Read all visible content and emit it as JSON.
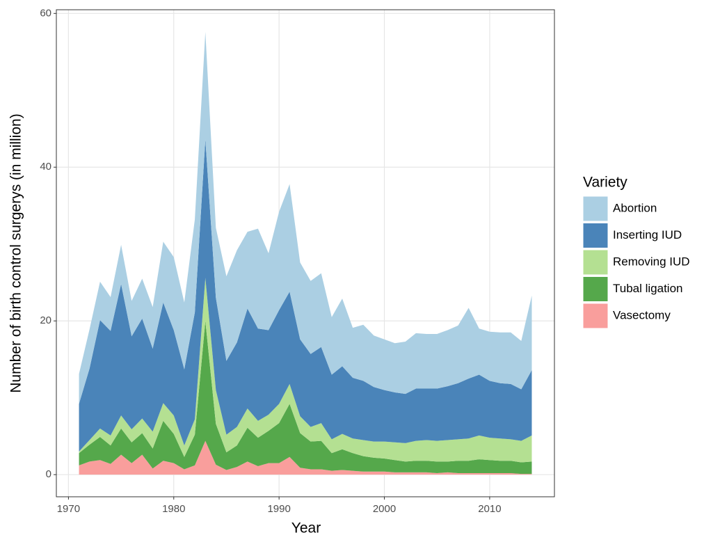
{
  "chart_data": {
    "type": "stacked_area",
    "x_label": "Year",
    "y_label": "Number of birth control surgerys (in million)",
    "legend_title": "Variety",
    "legend_position": "right",
    "grid": true,
    "x": [
      1971,
      1972,
      1973,
      1974,
      1975,
      1976,
      1977,
      1978,
      1979,
      1980,
      1981,
      1982,
      1983,
      1984,
      1985,
      1986,
      1987,
      1988,
      1989,
      1990,
      1991,
      1992,
      1993,
      1994,
      1995,
      1996,
      1997,
      1998,
      1999,
      2000,
      2001,
      2002,
      2003,
      2004,
      2005,
      2006,
      2007,
      2008,
      2009,
      2010,
      2011,
      2012,
      2013,
      2014
    ],
    "xlim": [
      1968.85,
      2016.15
    ],
    "xticks": [
      1970,
      1980,
      1990,
      2000,
      2010
    ],
    "ylim": [
      -2.88,
      60.48
    ],
    "yticks": [
      0,
      20,
      40,
      60
    ],
    "series": [
      {
        "name": "Abortion",
        "color": "#abcfe3",
        "values": [
          3.9,
          5.1,
          5.0,
          4.4,
          5.1,
          4.6,
          5.2,
          5.4,
          7.9,
          9.5,
          8.7,
          12.1,
          14.0,
          9.1,
          11.0,
          12.0,
          10.0,
          13.0,
          10.0,
          12.8,
          14.0,
          10.0,
          9.5,
          9.6,
          7.5,
          8.8,
          6.5,
          7.3,
          6.7,
          6.6,
          6.4,
          6.8,
          7.2,
          7.1,
          7.1,
          7.3,
          7.5,
          9.2,
          6.0,
          6.4,
          6.6,
          6.7,
          6.3,
          9.7
        ]
      },
      {
        "name": "Inserting IUD",
        "color": "#4a84b9",
        "values": [
          6.2,
          9.3,
          14.1,
          13.6,
          17.1,
          12.1,
          13.0,
          10.8,
          13.1,
          11.1,
          9.9,
          13.9,
          18.0,
          12.0,
          9.6,
          11.0,
          13.0,
          12.0,
          11.0,
          12.2,
          12.0,
          10.0,
          9.5,
          9.9,
          8.4,
          8.8,
          7.9,
          7.7,
          7.1,
          6.7,
          6.5,
          6.4,
          6.8,
          6.7,
          6.8,
          7.0,
          7.3,
          7.8,
          7.9,
          7.4,
          7.2,
          7.2,
          6.7,
          8.5
        ]
      },
      {
        "name": "Removing IUD",
        "color": "#b4e092",
        "values": [
          0.2,
          0.6,
          1.1,
          1.3,
          1.7,
          1.7,
          1.9,
          2.2,
          2.3,
          2.4,
          1.5,
          2.0,
          5.6,
          4.4,
          2.3,
          2.4,
          2.5,
          2.2,
          2.1,
          2.5,
          2.6,
          2.2,
          1.9,
          2.3,
          1.8,
          2.0,
          1.9,
          2.1,
          2.1,
          2.2,
          2.3,
          2.4,
          2.6,
          2.7,
          2.7,
          2.8,
          2.8,
          2.9,
          3.1,
          2.9,
          2.9,
          2.8,
          2.8,
          3.4
        ]
      },
      {
        "name": "Tubal ligation",
        "color": "#55a84b",
        "values": [
          1.6,
          2.2,
          3.0,
          2.4,
          3.4,
          2.7,
          2.8,
          2.6,
          5.2,
          3.8,
          1.6,
          4.0,
          15.6,
          5.3,
          2.3,
          2.8,
          4.4,
          3.7,
          4.2,
          5.2,
          6.9,
          4.5,
          3.6,
          3.7,
          2.3,
          2.7,
          2.3,
          2.0,
          1.8,
          1.7,
          1.6,
          1.4,
          1.5,
          1.5,
          1.5,
          1.4,
          1.6,
          1.6,
          1.8,
          1.7,
          1.6,
          1.6,
          1.5,
          1.6
        ]
      },
      {
        "name": "Vasectomy",
        "color": "#f99e9c",
        "values": [
          1.2,
          1.7,
          1.9,
          1.4,
          2.6,
          1.5,
          2.6,
          0.8,
          1.8,
          1.5,
          0.7,
          1.2,
          4.4,
          1.3,
          0.6,
          1.0,
          1.7,
          1.1,
          1.5,
          1.5,
          2.3,
          0.9,
          0.7,
          0.7,
          0.5,
          0.6,
          0.5,
          0.4,
          0.4,
          0.4,
          0.3,
          0.3,
          0.3,
          0.3,
          0.2,
          0.3,
          0.2,
          0.2,
          0.2,
          0.2,
          0.2,
          0.2,
          0.1,
          0.1
        ]
      }
    ]
  }
}
